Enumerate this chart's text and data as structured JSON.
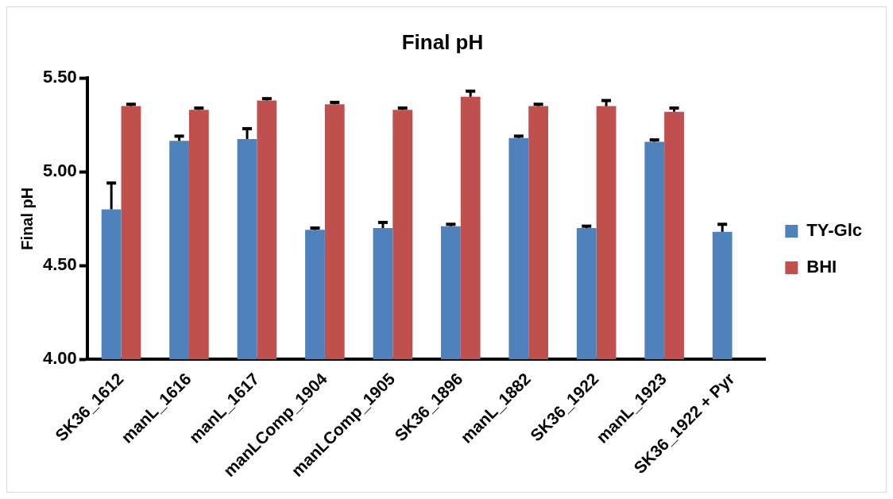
{
  "chart_data": {
    "type": "bar",
    "title": "Final pH",
    "ylabel": "Final pH",
    "categories": [
      "SK36_1612",
      "manL_1616",
      "manL_1617",
      "manLComp_1904",
      "manLComp_1905",
      "SK36_1896",
      "manL_1882",
      "SK36_1922",
      "manL_1923",
      "SK36_1922 + Pyr"
    ],
    "series": [
      {
        "name": "TY-Glc",
        "color": "#4f81bd",
        "values": [
          4.8,
          5.165,
          5.175,
          4.69,
          4.7,
          4.71,
          5.18,
          4.7,
          5.16,
          4.68
        ],
        "errors": [
          [
            4.8,
            4.94
          ],
          [
            5.165,
            5.19
          ],
          [
            5.175,
            5.23
          ],
          [
            4.69,
            4.7
          ],
          [
            4.7,
            4.73
          ],
          [
            4.71,
            4.72
          ],
          [
            5.18,
            5.19
          ],
          [
            4.7,
            4.71
          ],
          [
            5.16,
            5.17
          ],
          [
            4.68,
            4.72
          ]
        ]
      },
      {
        "name": "BHI",
        "color": "#c0504d",
        "values": [
          5.35,
          5.33,
          5.38,
          5.36,
          5.33,
          5.4,
          5.35,
          5.35,
          5.32,
          null
        ],
        "errors": [
          [
            5.35,
            5.36
          ],
          [
            5.33,
            5.34
          ],
          [
            5.38,
            5.39
          ],
          [
            5.36,
            5.37
          ],
          [
            5.33,
            5.34
          ],
          [
            5.4,
            5.43
          ],
          [
            5.35,
            5.36
          ],
          [
            5.35,
            5.38
          ],
          [
            5.32,
            5.34
          ],
          null
        ]
      }
    ],
    "ylim": [
      4.0,
      5.5
    ],
    "yticks": [
      {
        "value": 4.0,
        "label": "4.00"
      },
      {
        "value": 4.5,
        "label": "4.50"
      },
      {
        "value": 5.0,
        "label": "5.00"
      },
      {
        "value": 5.5,
        "label": "5.50"
      }
    ],
    "grid": false,
    "legend": "right"
  }
}
